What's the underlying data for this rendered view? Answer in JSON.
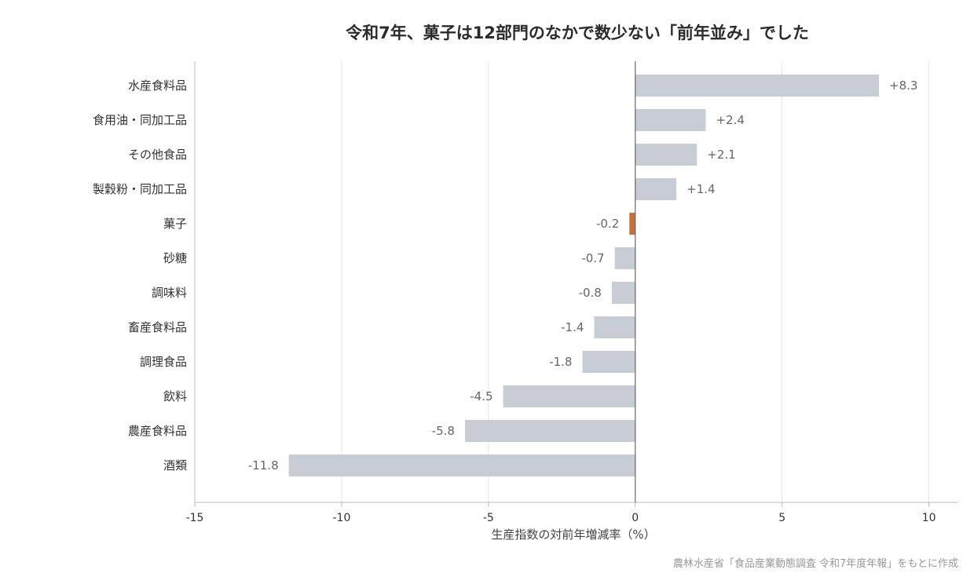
{
  "chart_data": {
    "type": "bar",
    "orientation": "horizontal",
    "title": "令和7年、菓子は12部門のなかで数少ない「前年並み」でした",
    "categories": [
      "水産食料品",
      "食用油・同加工品",
      "その他食品",
      "製穀粉・同加工品",
      "菓子",
      "砂糖",
      "調味料",
      "畜産食料品",
      "調理食品",
      "飲料",
      "農産食料品",
      "酒類"
    ],
    "values": [
      8.3,
      2.4,
      2.1,
      1.4,
      -0.2,
      -0.7,
      -0.8,
      -1.4,
      -1.8,
      -4.5,
      -5.8,
      -11.8
    ],
    "value_labels": [
      "+8.3",
      "+2.4",
      "+2.1",
      "+1.4",
      "-0.2",
      "-0.7",
      "-0.8",
      "-1.4",
      "-1.8",
      "-4.5",
      "-5.8",
      "-11.8"
    ],
    "highlight_category": "菓子",
    "xlabel": "生産指数の対前年増減率（%）",
    "ylabel": "",
    "xlim": [
      -15,
      11
    ],
    "xticks": [
      -15,
      -10,
      -5,
      0,
      5,
      10
    ],
    "xtick_labels": [
      "-15",
      "-10",
      "-5",
      "0",
      "5",
      "10"
    ],
    "grid": "vertical",
    "legend": "none",
    "colors": {
      "bar": "#c8ccd5",
      "highlight": "#c87038",
      "grid": "#e6e6e6",
      "axis": "#bbbbbb",
      "zero_line": "#666666"
    }
  },
  "source_note": "農林水産省「食品産業動態調査 令和7年度年報」をもとに作成"
}
